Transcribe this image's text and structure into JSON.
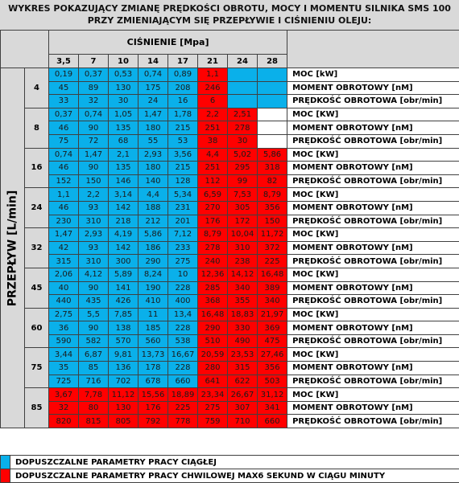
{
  "title": {
    "line1": "WYKRES POKAZUJĄCY ZMIANĘ PRĘDKOŚCI OBROTU, MOCY I MOMENTU SILNIKA SMS 100",
    "line2": "PRZY ZMIENIAJĄCYM SIĘ PRZEPŁYWIE I CIŚNIENIU OLEJU:"
  },
  "pressure_header": "CIŚNIENIE  [Mpa]",
  "pressures": [
    "3,5",
    "7",
    "10",
    "14",
    "17",
    "21",
    "24",
    "28"
  ],
  "flow_axis_label": "PRZEPŁYW [L/min]",
  "colors": {
    "blue": "#0ab0ea",
    "red": "#ff0000",
    "header": "#d9d9d9"
  },
  "groups": [
    {
      "flow": "4",
      "rows": [
        {
          "label": "MOC [kW]",
          "values": [
            "0,19",
            "0,37",
            "0,53",
            "0,74",
            "0,89",
            "1,1",
            "",
            ""
          ],
          "colors": [
            "b",
            "b",
            "b",
            "b",
            "b",
            "r",
            "b",
            "b"
          ]
        },
        {
          "label": "MOMENT OBROTOWY [nM]",
          "values": [
            "45",
            "89",
            "130",
            "175",
            "208",
            "246",
            "",
            ""
          ],
          "colors": [
            "b",
            "b",
            "b",
            "b",
            "b",
            "r",
            "b",
            "b"
          ]
        },
        {
          "label": "PRĘDKOŚĆ OBROTOWA [obr/min]",
          "values": [
            "33",
            "32",
            "30",
            "24",
            "16",
            "6",
            "",
            ""
          ],
          "colors": [
            "b",
            "b",
            "b",
            "b",
            "b",
            "r",
            "b",
            "b"
          ]
        }
      ]
    },
    {
      "flow": "8",
      "rows": [
        {
          "label": "MOC [KW]",
          "values": [
            "0,37",
            "0,74",
            "1,05",
            "1,47",
            "1,78",
            "2,2",
            "2,51",
            ""
          ],
          "colors": [
            "b",
            "b",
            "b",
            "b",
            "b",
            "r",
            "r",
            "w"
          ]
        },
        {
          "label": "MOMENT OBROTOWY [nM]",
          "values": [
            "46",
            "90",
            "135",
            "180",
            "215",
            "251",
            "278",
            ""
          ],
          "colors": [
            "b",
            "b",
            "b",
            "b",
            "b",
            "r",
            "r",
            "w"
          ]
        },
        {
          "label": "PRĘDKOŚĆ OBROTOWA [obr/min]",
          "values": [
            "75",
            "72",
            "68",
            "55",
            "53",
            "38",
            "30",
            ""
          ],
          "colors": [
            "b",
            "b",
            "b",
            "b",
            "b",
            "r",
            "r",
            "w"
          ]
        }
      ]
    },
    {
      "flow": "16",
      "rows": [
        {
          "label": "MOC [KW]",
          "values": [
            "0,74",
            "1,47",
            "2,1",
            "2,93",
            "3,56",
            "4,4",
            "5,02",
            "5,86"
          ],
          "colors": [
            "b",
            "b",
            "b",
            "b",
            "b",
            "r",
            "r",
            "r"
          ]
        },
        {
          "label": "MOMENT OBROTOWY [nM]",
          "values": [
            "46",
            "90",
            "135",
            "180",
            "215",
            "251",
            "295",
            "318"
          ],
          "colors": [
            "b",
            "b",
            "b",
            "b",
            "b",
            "r",
            "r",
            "r"
          ]
        },
        {
          "label": "PRĘDKOŚĆ OBROTOWA [obr/min]",
          "values": [
            "152",
            "150",
            "146",
            "140",
            "128",
            "112",
            "99",
            "82"
          ],
          "colors": [
            "b",
            "b",
            "b",
            "b",
            "b",
            "r",
            "r",
            "r"
          ]
        }
      ]
    },
    {
      "flow": "24",
      "rows": [
        {
          "label": "MOC [KW]",
          "values": [
            "1,1",
            "2,2",
            "3,14",
            "4,4",
            "5,34",
            "6,59",
            "7,53",
            "8,79"
          ],
          "colors": [
            "b",
            "b",
            "b",
            "b",
            "b",
            "r",
            "r",
            "r"
          ]
        },
        {
          "label": "MOMENT OBROTOWY [nM]",
          "values": [
            "46",
            "93",
            "142",
            "188",
            "231",
            "270",
            "305",
            "356"
          ],
          "colors": [
            "b",
            "b",
            "b",
            "b",
            "b",
            "r",
            "r",
            "r"
          ]
        },
        {
          "label": "PRĘDKOŚĆ OBROTOWA [obr/min]",
          "values": [
            "230",
            "310",
            "218",
            "212",
            "201",
            "176",
            "172",
            "150"
          ],
          "colors": [
            "b",
            "b",
            "b",
            "b",
            "b",
            "r",
            "r",
            "r"
          ]
        }
      ]
    },
    {
      "flow": "32",
      "rows": [
        {
          "label": "MOC [KW]",
          "values": [
            "1,47",
            "2,93",
            "4,19",
            "5,86",
            "7,12",
            "8,79",
            "10,04",
            "11,72"
          ],
          "colors": [
            "b",
            "b",
            "b",
            "b",
            "b",
            "r",
            "r",
            "r"
          ]
        },
        {
          "label": "MOMENT OBROTOWY [nM]",
          "values": [
            "42",
            "93",
            "142",
            "186",
            "233",
            "278",
            "310",
            "372"
          ],
          "colors": [
            "b",
            "b",
            "b",
            "b",
            "b",
            "r",
            "r",
            "r"
          ]
        },
        {
          "label": "PRĘDKOŚĆ OBROTOWA [obr/min]",
          "values": [
            "315",
            "310",
            "300",
            "290",
            "275",
            "240",
            "238",
            "225"
          ],
          "colors": [
            "b",
            "b",
            "b",
            "b",
            "b",
            "r",
            "r",
            "r"
          ]
        }
      ]
    },
    {
      "flow": "45",
      "rows": [
        {
          "label": "MOC [KW]",
          "values": [
            "2,06",
            "4,12",
            "5,89",
            "8,24",
            "10",
            "12,36",
            "14,12",
            "16,48"
          ],
          "colors": [
            "b",
            "b",
            "b",
            "b",
            "b",
            "r",
            "r",
            "r"
          ]
        },
        {
          "label": "MOMENT OBROTOWY [nM]",
          "values": [
            "40",
            "90",
            "141",
            "190",
            "228",
            "285",
            "340",
            "389"
          ],
          "colors": [
            "b",
            "b",
            "b",
            "b",
            "b",
            "r",
            "r",
            "r"
          ]
        },
        {
          "label": "PRĘDKOŚĆ OBROTOWA [obr/min]",
          "values": [
            "440",
            "435",
            "426",
            "410",
            "400",
            "368",
            "355",
            "340"
          ],
          "colors": [
            "b",
            "b",
            "b",
            "b",
            "b",
            "r",
            "r",
            "r"
          ]
        }
      ]
    },
    {
      "flow": "60",
      "rows": [
        {
          "label": "MOC [KW]",
          "values": [
            "2,75",
            "5,5",
            "7,85",
            "11",
            "13,4",
            "16,48",
            "18,83",
            "21,97"
          ],
          "colors": [
            "b",
            "b",
            "b",
            "b",
            "b",
            "r",
            "r",
            "r"
          ]
        },
        {
          "label": "MOMENT OBROTOWY [nM]",
          "values": [
            "36",
            "90",
            "138",
            "185",
            "228",
            "290",
            "330",
            "369"
          ],
          "colors": [
            "b",
            "b",
            "b",
            "b",
            "b",
            "r",
            "r",
            "r"
          ]
        },
        {
          "label": "PRĘDKOŚĆ OBROTOWA [obr/min]",
          "values": [
            "590",
            "582",
            "570",
            "560",
            "538",
            "510",
            "490",
            "475"
          ],
          "colors": [
            "b",
            "b",
            "b",
            "b",
            "b",
            "r",
            "r",
            "r"
          ]
        }
      ]
    },
    {
      "flow": "75",
      "rows": [
        {
          "label": "MOC [KW]",
          "values": [
            "3,44",
            "6,87",
            "9,81",
            "13,73",
            "16,67",
            "20,59",
            "23,53",
            "27,46"
          ],
          "colors": [
            "b",
            "b",
            "b",
            "b",
            "b",
            "r",
            "r",
            "r"
          ]
        },
        {
          "label": "MOMENT OBROTOWY [nM]",
          "values": [
            "35",
            "85",
            "136",
            "178",
            "228",
            "280",
            "315",
            "356"
          ],
          "colors": [
            "b",
            "b",
            "b",
            "b",
            "b",
            "r",
            "r",
            "r"
          ]
        },
        {
          "label": "PRĘDKOŚĆ OBROTOWA [obr/min]",
          "values": [
            "725",
            "716",
            "702",
            "678",
            "660",
            "641",
            "622",
            "503"
          ],
          "colors": [
            "b",
            "b",
            "b",
            "b",
            "b",
            "r",
            "r",
            "r"
          ]
        }
      ]
    },
    {
      "flow": "85",
      "rows": [
        {
          "label": "MOC [KW]",
          "values": [
            "3,67",
            "7,78",
            "11,12",
            "15,56",
            "18,89",
            "23,34",
            "26,67",
            "31,12"
          ],
          "colors": [
            "r",
            "r",
            "r",
            "r",
            "r",
            "r",
            "r",
            "r"
          ]
        },
        {
          "label": "MOMENT OBROTOWY [nM]",
          "values": [
            "32",
            "80",
            "130",
            "176",
            "225",
            "275",
            "307",
            "341"
          ],
          "colors": [
            "r",
            "r",
            "r",
            "r",
            "r",
            "r",
            "r",
            "r"
          ]
        },
        {
          "label": "PRĘDKOŚĆ OBROTOWA [obr/min]",
          "values": [
            "820",
            "815",
            "805",
            "792",
            "778",
            "759",
            "710",
            "660"
          ],
          "colors": [
            "r",
            "r",
            "r",
            "r",
            "r",
            "r",
            "r",
            "r"
          ]
        }
      ]
    }
  ],
  "legend": [
    {
      "color": "#0ab0ea",
      "label": "DOPUSZCZALNE PARAMETRY PRACY CIĄGŁEJ"
    },
    {
      "color": "#ff0000",
      "label": "DOPUSZCZALNE PARAMETRY PRACY CHWILOWEJ MAX6 SEKUND W CIĄGU MINUTY"
    }
  ]
}
